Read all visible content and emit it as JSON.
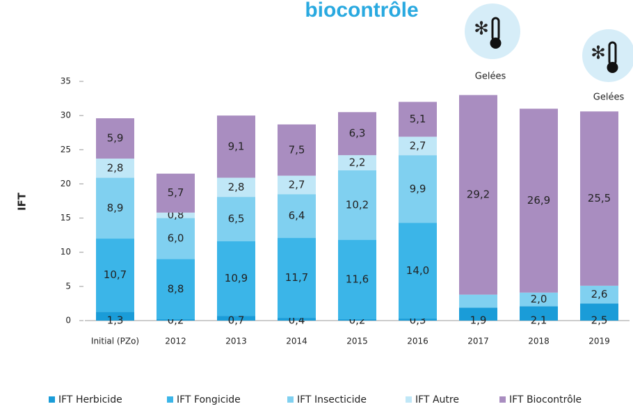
{
  "chart_data": {
    "type": "stacked_bar",
    "title": "biocontrôle",
    "ylabel": "IFT",
    "categories": [
      "Initial (PZo)",
      "2012",
      "2013",
      "2014",
      "2015",
      "2016",
      "2017",
      "2018",
      "2019"
    ],
    "series": [
      {
        "name": "IFT Herbicide",
        "color": "#1a9cd8",
        "values": [
          1.3,
          0.2,
          0.7,
          0.4,
          0.2,
          0.3,
          1.9,
          2.1,
          2.5
        ],
        "value_labels": [
          "1,3",
          "0,2",
          "0,7",
          "0,4",
          "0,2",
          "0,3",
          "1,9",
          "2,1",
          "2,5"
        ]
      },
      {
        "name": "IFT Fongicide",
        "color": "#3bb5e8",
        "values": [
          10.7,
          8.8,
          10.9,
          11.7,
          11.6,
          14.0,
          null,
          null,
          null
        ],
        "value_labels": [
          "10,7",
          "8,8",
          "10,9",
          "11,7",
          "11,6",
          "14,0",
          null,
          null,
          null
        ]
      },
      {
        "name": "IFT Insecticide",
        "color": "#80d0f0",
        "values": [
          8.9,
          6.0,
          6.5,
          6.4,
          10.2,
          9.9,
          1.9,
          2.0,
          2.6
        ],
        "value_labels": [
          "8,9",
          "6,0",
          "6,5",
          "6,4",
          "10,2",
          "9,9",
          null,
          "2,0",
          "2,6"
        ]
      },
      {
        "name": "IFT Autre",
        "color": "#c0e7f7",
        "values": [
          2.8,
          0.8,
          2.8,
          2.7,
          2.2,
          2.7,
          null,
          null,
          null
        ],
        "value_labels": [
          "2,8",
          "0,8",
          "2,8",
          "2,7",
          "2,2",
          "2,7",
          null,
          null,
          null
        ]
      },
      {
        "name": "IFT Biocontrôle",
        "color": "#a98dc0",
        "values": [
          5.9,
          5.7,
          9.1,
          7.5,
          6.3,
          5.1,
          29.2,
          26.9,
          25.5
        ],
        "value_labels": [
          "5,9",
          "5,7",
          "9,1",
          "7,5",
          "6,3",
          "5,1",
          "29,2",
          "26,9",
          "25,5"
        ]
      }
    ],
    "annotations": [
      "Gelées",
      "Gelées"
    ],
    "ylim": [
      0,
      35
    ],
    "yticks": [
      0,
      5,
      10,
      15,
      20,
      25,
      30,
      35
    ],
    "grid": false,
    "legend": "bottom"
  }
}
